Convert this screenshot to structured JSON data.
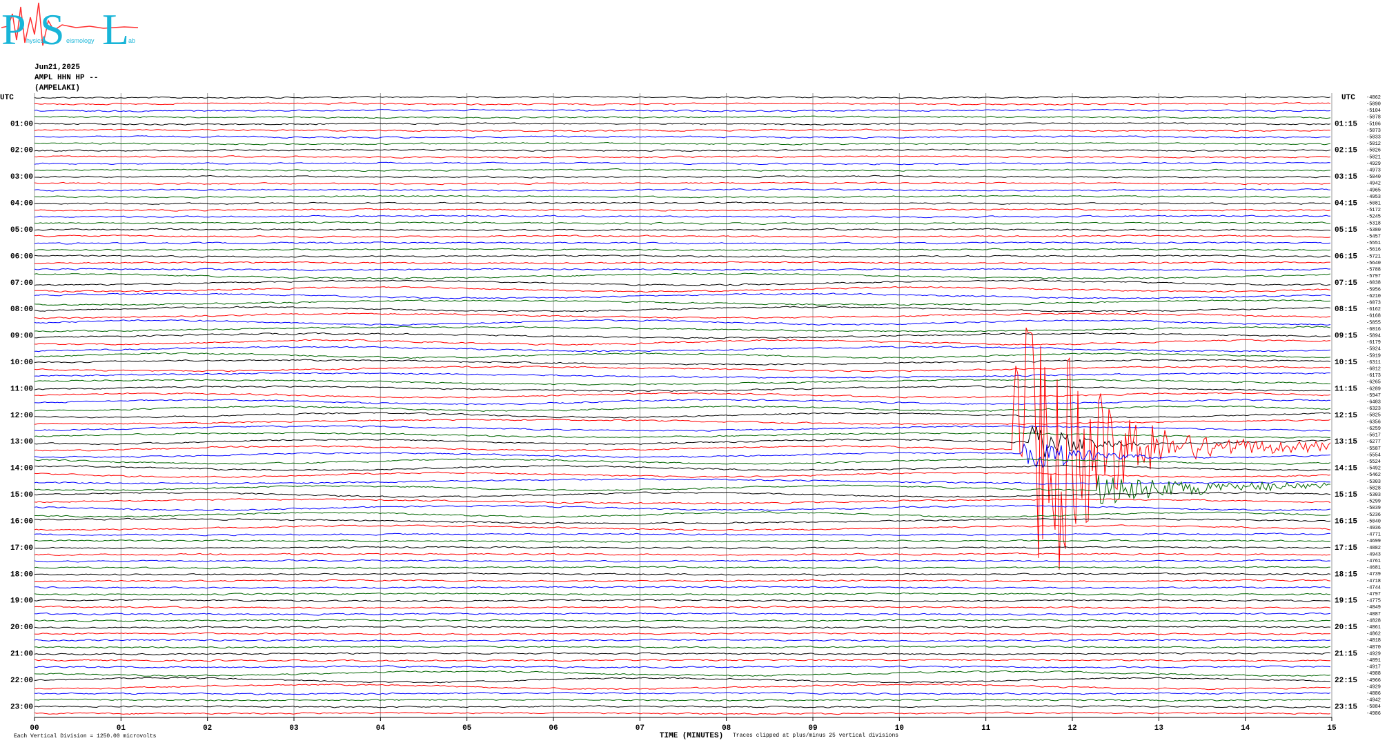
{
  "header": {
    "logo_letters": [
      "P",
      "S",
      "L"
    ],
    "logo_words": [
      "hysics",
      "eismology",
      "ab"
    ]
  },
  "chart_data": {
    "type": "helicorder",
    "date": "Jun21,2025",
    "station": "AMPL HHN HP --",
    "location": "(AMPELAKI)",
    "left_axis_title": "UTC",
    "right_axis_title": "UTC",
    "row_labels_left": [
      "01:00",
      "02:00",
      "03:00",
      "04:00",
      "05:00",
      "06:00",
      "07:00",
      "08:00",
      "09:00",
      "10:00",
      "11:00",
      "12:00",
      "13:00",
      "14:00",
      "15:00",
      "16:00",
      "17:00",
      "18:00",
      "19:00",
      "20:00",
      "21:00",
      "22:00",
      "23:00"
    ],
    "row_labels_right": [
      "01:15",
      "02:15",
      "03:15",
      "04:15",
      "05:15",
      "06:15",
      "07:15",
      "08:15",
      "09:15",
      "10:15",
      "11:15",
      "12:15",
      "13:15",
      "14:15",
      "15:15",
      "16:15",
      "17:15",
      "18:15",
      "19:15",
      "20:15",
      "21:15",
      "22:15",
      "23:15"
    ],
    "row_offsets": [
      -4862,
      -5090,
      -5104,
      -5078,
      -5106,
      -5073,
      -5033,
      -5012,
      -5026,
      -5021,
      -4929,
      -4973,
      -5040,
      -4942,
      -4965,
      -4953,
      -5081,
      -5172,
      -5245,
      -5318,
      -5380,
      -5457,
      -5551,
      -5616,
      -5721,
      -5640,
      -5788,
      -5797,
      -6038,
      -5956,
      -6210,
      -6073,
      -6162,
      -6168,
      -5855,
      -6016,
      -5894,
      -6179,
      -5924,
      -5919,
      -6311,
      -6012,
      -6173,
      -6265,
      -6289,
      -5947,
      -6403,
      -6323,
      -5825,
      -6356,
      -6259,
      -5617,
      -6277,
      -5587,
      -5554,
      -5524,
      -5492,
      -5462,
      -5303,
      -5828,
      -5303,
      -5299,
      -5039,
      -5236,
      -5040,
      -4936,
      -4771,
      -4699,
      -4882,
      -4943,
      -4761,
      -4681,
      -4739,
      -4718,
      -4744,
      -4797,
      -4775,
      -4849,
      -4887,
      -4828,
      -4861,
      -4862,
      -4818,
      -4870,
      -4929,
      -4891,
      -4917,
      -4988,
      -4966,
      -4929,
      -4886,
      -4942,
      -5084,
      -4986
    ],
    "row_colors": [
      "#000000",
      "#ff0000",
      "#0000ff",
      "#006400"
    ],
    "x_label": "TIME (MINUTES)",
    "xlim": [
      0,
      15
    ],
    "xticks": [
      {
        "value": 0,
        "label": "00"
      },
      {
        "value": 1,
        "label": "01"
      },
      {
        "value": 2,
        "label": "02"
      },
      {
        "value": 3,
        "label": "03"
      },
      {
        "value": 4,
        "label": "04"
      },
      {
        "value": 5,
        "label": "05"
      },
      {
        "value": 6,
        "label": "06"
      },
      {
        "value": 7,
        "label": "07"
      },
      {
        "value": 8,
        "label": "08"
      },
      {
        "value": 9,
        "label": "09"
      },
      10,
      11,
      12,
      13,
      14,
      15
    ],
    "grid": true,
    "footnote_left": "Each Vertical Division = 1250.00 microvolts",
    "footnote_right": "Traces clipped at plus/minus 25 vertical divisions"
  }
}
